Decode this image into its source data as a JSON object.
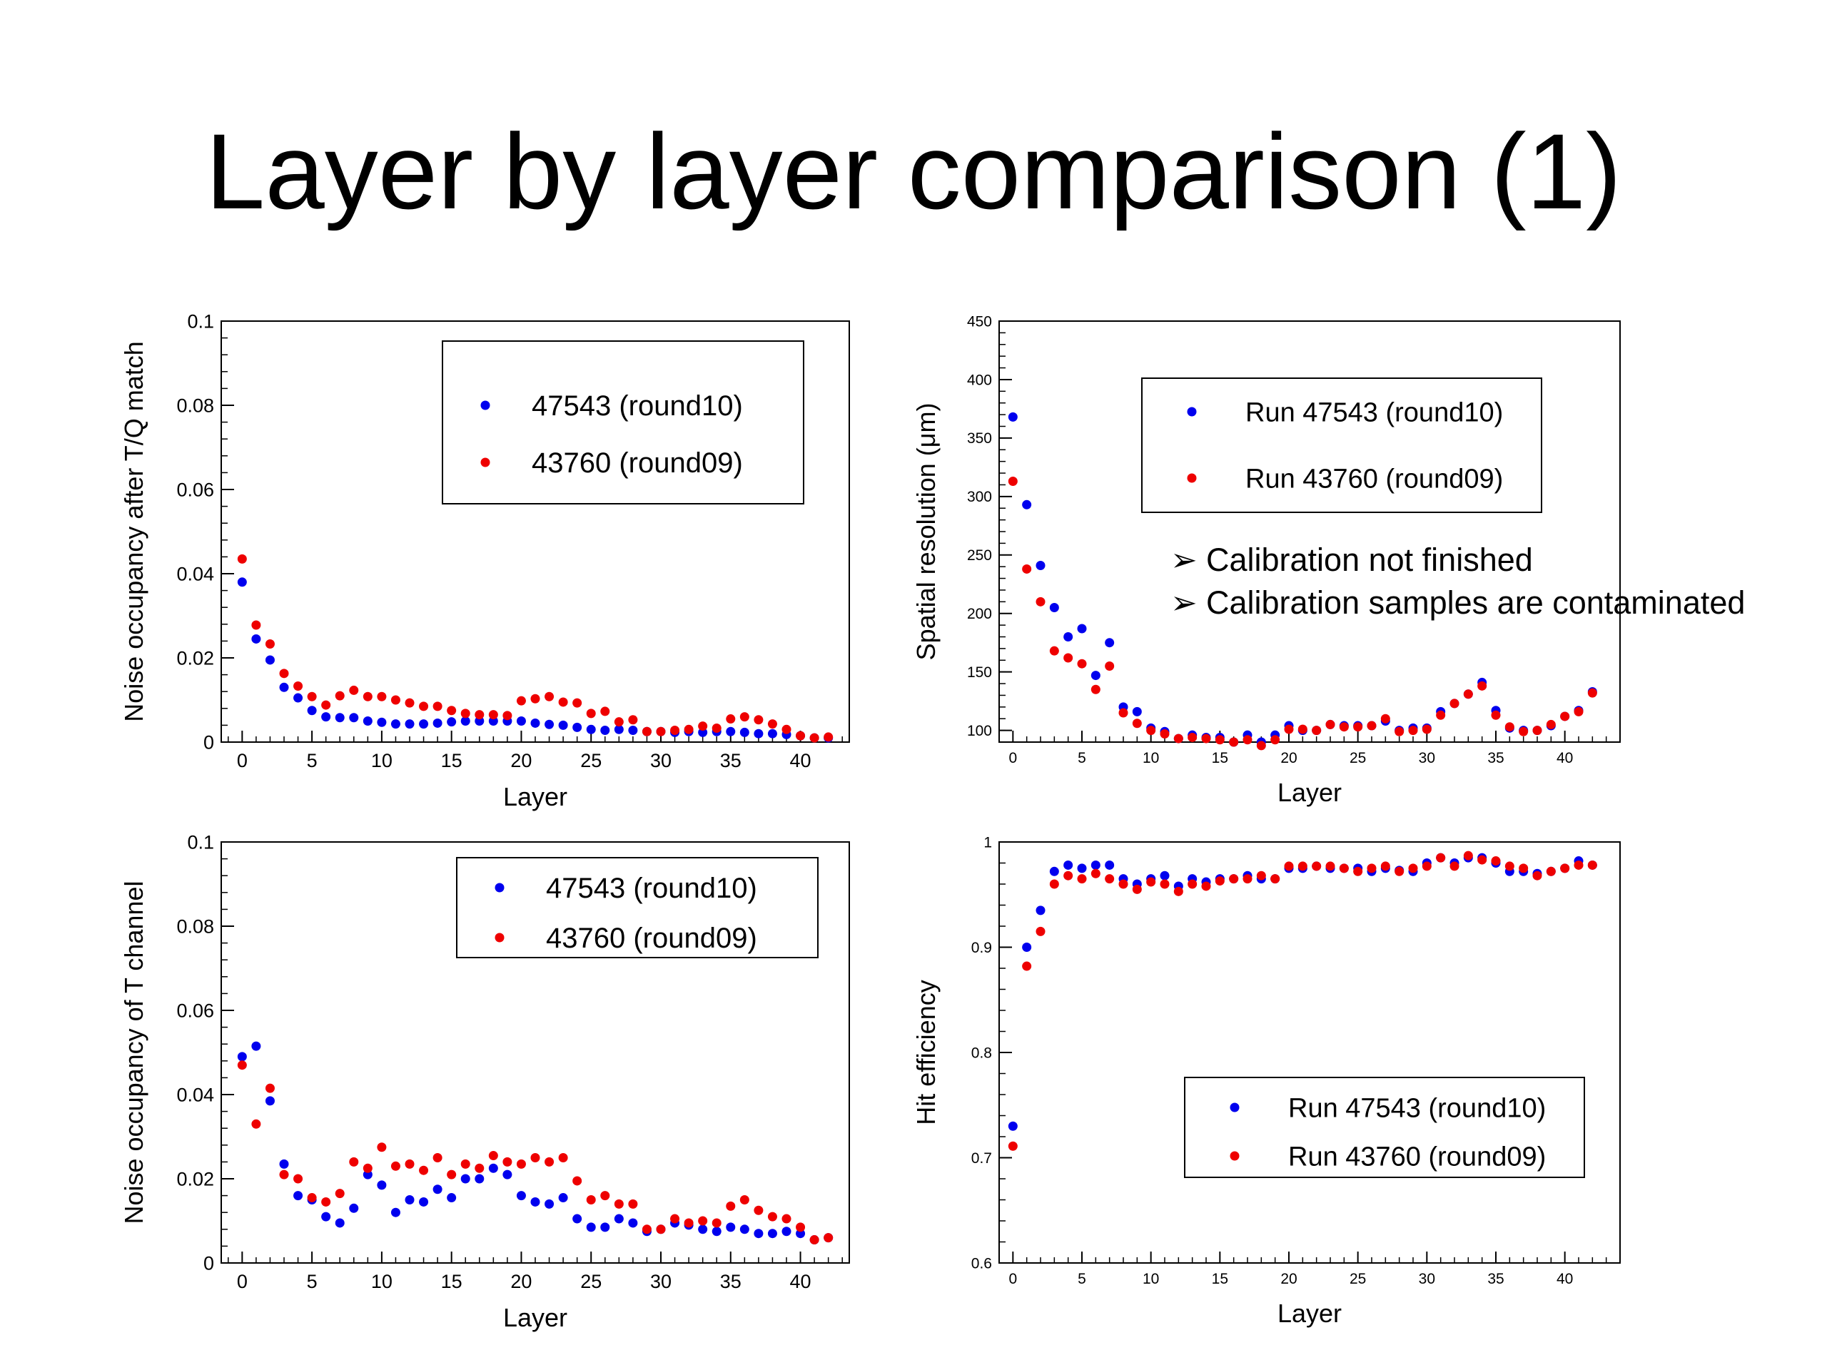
{
  "title": "Layer by layer comparison (1)",
  "notes": [
    "Calibration not finished",
    "Calibration samples are contaminated"
  ],
  "colors": {
    "series1": "#0000ee",
    "series2": "#ee0000",
    "axis": "#000000"
  },
  "chart_data": [
    {
      "type": "scatter",
      "xlabel": "Layer",
      "ylabel": "Noise occupancy after T/Q match",
      "xlim": [
        -1.5,
        43.5
      ],
      "ylim": [
        0,
        0.1
      ],
      "xticks": [
        0,
        5,
        10,
        15,
        20,
        25,
        30,
        35,
        40
      ],
      "xtick_labels": [
        "0",
        "5",
        "10",
        "15",
        "20",
        "25",
        "30",
        "35",
        "40"
      ],
      "yticks": [
        0,
        0.02,
        0.04,
        0.06,
        0.08,
        0.1
      ],
      "ytick_labels": [
        "0",
        "0.02",
        "0.04",
        "0.06",
        "0.08",
        "0.1"
      ],
      "legend": "top-right",
      "x": [
        0,
        1,
        2,
        3,
        4,
        5,
        6,
        7,
        8,
        9,
        10,
        11,
        12,
        13,
        14,
        15,
        16,
        17,
        18,
        19,
        20,
        21,
        22,
        23,
        24,
        25,
        26,
        27,
        28,
        29,
        30,
        31,
        32,
        33,
        34,
        35,
        36,
        37,
        38,
        39,
        40,
        41,
        42
      ],
      "series": [
        {
          "name": "47543 (round10)",
          "color": "#0000ee",
          "values": [
            0.038,
            0.0245,
            0.0195,
            0.013,
            0.0105,
            0.0075,
            0.006,
            0.0058,
            0.0058,
            0.005,
            0.0047,
            0.0043,
            0.0043,
            0.0043,
            0.0045,
            0.0048,
            0.005,
            0.005,
            0.005,
            0.005,
            0.005,
            0.0045,
            0.0042,
            0.004,
            0.0035,
            0.003,
            0.0028,
            0.003,
            0.0028,
            0.0025,
            0.0025,
            0.0023,
            0.0025,
            0.0023,
            0.0025,
            0.0025,
            0.0023,
            0.002,
            0.002,
            0.0018,
            0.0015,
            0.001,
            0.001
          ]
        },
        {
          "name": "43760 (round09)",
          "color": "#ee0000",
          "values": [
            0.0435,
            0.0278,
            0.0233,
            0.0163,
            0.0133,
            0.0108,
            0.0088,
            0.011,
            0.0123,
            0.0108,
            0.0108,
            0.01,
            0.0093,
            0.0085,
            0.0085,
            0.0075,
            0.0068,
            0.0065,
            0.0065,
            0.0063,
            0.0098,
            0.0103,
            0.0108,
            0.0095,
            0.0093,
            0.0068,
            0.0073,
            0.0048,
            0.0053,
            0.0025,
            0.0025,
            0.0028,
            0.003,
            0.0038,
            0.0033,
            0.0055,
            0.006,
            0.0053,
            0.0043,
            0.003,
            0.0015,
            0.001,
            0.0012
          ]
        }
      ]
    },
    {
      "type": "scatter",
      "xlabel": "Layer",
      "ylabel": "Spatial resolution (μm)",
      "xlim": [
        -1,
        44
      ],
      "ylim": [
        90,
        450
      ],
      "xticks": [
        0,
        5,
        10,
        15,
        20,
        25,
        30,
        35,
        40
      ],
      "xtick_labels": [
        "0",
        "5",
        "10",
        "15",
        "20",
        "25",
        "30",
        "35",
        "40"
      ],
      "yticks": [
        100,
        150,
        200,
        250,
        300,
        350,
        400,
        450
      ],
      "ytick_labels": [
        "100",
        "150",
        "200",
        "250",
        "300",
        "350",
        "400",
        "450"
      ],
      "legend": "top-right",
      "x": [
        0,
        1,
        2,
        3,
        4,
        5,
        6,
        7,
        8,
        9,
        10,
        11,
        12,
        13,
        14,
        15,
        16,
        17,
        18,
        19,
        20,
        21,
        22,
        23,
        24,
        25,
        26,
        27,
        28,
        29,
        30,
        31,
        32,
        33,
        34,
        35,
        36,
        37,
        38,
        39,
        40,
        41,
        42
      ],
      "series": [
        {
          "name": "Run 47543 (round10)",
          "color": "#0000ee",
          "values": [
            368,
            293,
            241,
            205,
            180,
            187,
            147,
            175,
            120,
            116,
            102,
            99,
            93,
            96,
            94,
            94,
            90,
            96,
            90,
            96,
            104,
            100,
            100,
            105,
            104,
            104,
            104,
            108,
            100,
            102,
            102,
            116,
            123,
            131,
            141,
            117,
            102,
            100,
            100,
            104,
            112,
            117,
            133
          ]
        },
        {
          "name": "Run 43760 (round09)",
          "color": "#ee0000",
          "values": [
            313,
            238,
            210,
            168,
            162,
            157,
            135,
            155,
            115,
            106,
            100,
            97,
            93,
            94,
            93,
            92,
            90,
            92,
            87,
            92,
            101,
            101,
            100,
            105,
            103,
            103,
            104,
            110,
            99,
            100,
            101,
            113,
            123,
            131,
            138,
            113,
            103,
            99,
            100,
            105,
            112,
            116,
            132
          ]
        }
      ]
    },
    {
      "type": "scatter",
      "xlabel": "Layer",
      "ylabel": "Noise occupancy of T channel",
      "xlim": [
        -1.5,
        43.5
      ],
      "ylim": [
        0,
        0.1
      ],
      "xticks": [
        0,
        5,
        10,
        15,
        20,
        25,
        30,
        35,
        40
      ],
      "xtick_labels": [
        "0",
        "5",
        "10",
        "15",
        "20",
        "25",
        "30",
        "35",
        "40"
      ],
      "yticks": [
        0,
        0.02,
        0.04,
        0.06,
        0.08,
        0.1
      ],
      "ytick_labels": [
        "0",
        "0.02",
        "0.04",
        "0.06",
        "0.08",
        "0.1"
      ],
      "legend": "top-right",
      "x": [
        0,
        1,
        2,
        3,
        4,
        5,
        6,
        7,
        8,
        9,
        10,
        11,
        12,
        13,
        14,
        15,
        16,
        17,
        18,
        19,
        20,
        21,
        22,
        23,
        24,
        25,
        26,
        27,
        28,
        29,
        30,
        31,
        32,
        33,
        34,
        35,
        36,
        37,
        38,
        39,
        40,
        41,
        42
      ],
      "series": [
        {
          "name": "47543 (round10)",
          "color": "#0000ee",
          "values": [
            0.049,
            0.0515,
            0.0385,
            0.0235,
            0.016,
            0.015,
            0.011,
            0.0095,
            0.013,
            0.021,
            0.0185,
            0.012,
            0.015,
            0.0145,
            0.0175,
            0.0155,
            0.02,
            0.02,
            0.0225,
            0.021,
            0.016,
            0.0145,
            0.014,
            0.0155,
            0.0105,
            0.0085,
            0.0085,
            0.0105,
            0.0095,
            0.0075,
            0.008,
            0.0095,
            0.009,
            0.008,
            0.0075,
            0.0085,
            0.008,
            0.007,
            0.007,
            0.0075,
            0.007,
            0.0055,
            0.006
          ]
        },
        {
          "name": "43760 (round09)",
          "color": "#ee0000",
          "values": [
            0.047,
            0.033,
            0.0415,
            0.021,
            0.02,
            0.0155,
            0.0145,
            0.0165,
            0.024,
            0.0225,
            0.0275,
            0.023,
            0.0235,
            0.022,
            0.025,
            0.021,
            0.0235,
            0.0225,
            0.0255,
            0.024,
            0.0235,
            0.025,
            0.024,
            0.025,
            0.0195,
            0.015,
            0.016,
            0.014,
            0.014,
            0.008,
            0.008,
            0.0105,
            0.0095,
            0.01,
            0.0095,
            0.0135,
            0.015,
            0.0125,
            0.011,
            0.0105,
            0.0085,
            0.0055,
            0.006
          ]
        }
      ]
    },
    {
      "type": "scatter",
      "xlabel": "Layer",
      "ylabel": "Hit efficiency",
      "xlim": [
        -1,
        44
      ],
      "ylim": [
        0.6,
        1.0
      ],
      "xticks": [
        0,
        5,
        10,
        15,
        20,
        25,
        30,
        35,
        40
      ],
      "xtick_labels": [
        "0",
        "5",
        "10",
        "15",
        "20",
        "25",
        "30",
        "35",
        "40"
      ],
      "yticks": [
        0.6,
        0.7,
        0.8,
        0.9,
        1.0
      ],
      "ytick_labels": [
        "0.6",
        "0.7",
        "0.8",
        "0.9",
        "1"
      ],
      "legend": "bottom-right",
      "x": [
        0,
        1,
        2,
        3,
        4,
        5,
        6,
        7,
        8,
        9,
        10,
        11,
        12,
        13,
        14,
        15,
        16,
        17,
        18,
        19,
        20,
        21,
        22,
        23,
        24,
        25,
        26,
        27,
        28,
        29,
        30,
        31,
        32,
        33,
        34,
        35,
        36,
        37,
        38,
        39,
        40,
        41,
        42
      ],
      "series": [
        {
          "name": "Run 47543 (round10)",
          "color": "#0000ee",
          "values": [
            0.73,
            0.9,
            0.935,
            0.972,
            0.978,
            0.975,
            0.978,
            0.978,
            0.965,
            0.96,
            0.965,
            0.968,
            0.958,
            0.965,
            0.962,
            0.965,
            0.965,
            0.968,
            0.965,
            0.965,
            0.975,
            0.975,
            0.977,
            0.975,
            0.975,
            0.975,
            0.972,
            0.975,
            0.973,
            0.972,
            0.98,
            0.985,
            0.98,
            0.985,
            0.985,
            0.98,
            0.972,
            0.972,
            0.97,
            0.972,
            0.975,
            0.982,
            0.978
          ]
        },
        {
          "name": "Run 43760 (round09)",
          "color": "#ee0000",
          "values": [
            0.711,
            0.882,
            0.915,
            0.96,
            0.968,
            0.965,
            0.97,
            0.965,
            0.96,
            0.955,
            0.962,
            0.96,
            0.953,
            0.96,
            0.958,
            0.963,
            0.965,
            0.965,
            0.968,
            0.965,
            0.977,
            0.977,
            0.977,
            0.977,
            0.975,
            0.972,
            0.975,
            0.977,
            0.972,
            0.975,
            0.977,
            0.985,
            0.977,
            0.987,
            0.983,
            0.982,
            0.977,
            0.975,
            0.968,
            0.972,
            0.975,
            0.978,
            0.978
          ]
        }
      ]
    }
  ]
}
